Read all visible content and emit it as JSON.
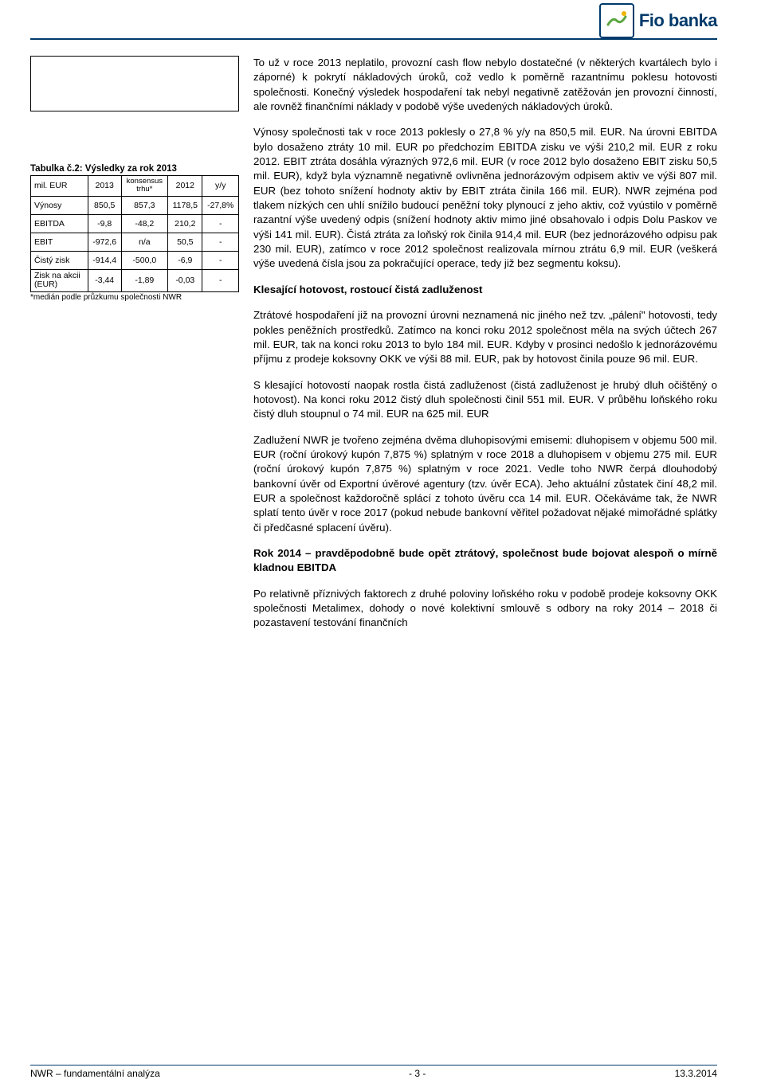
{
  "brand": {
    "name": "Fio banka",
    "logo_color": "#003a6b"
  },
  "table": {
    "caption": "Tabulka č.2: Výsledky za rok 2013",
    "columns": [
      "mil. EUR",
      "2013",
      "konsensus trhu*",
      "2012",
      "y/y"
    ],
    "rows": [
      [
        "Výnosy",
        "850,5",
        "857,3",
        "1178,5",
        "-27,8%"
      ],
      [
        "EBITDA",
        "-9,8",
        "-48,2",
        "210,2",
        "-"
      ],
      [
        "EBIT",
        "-972,6",
        "n/a",
        "50,5",
        "-"
      ],
      [
        "Čistý zisk",
        "-914,4",
        "-500,0",
        "-6,9",
        "-"
      ],
      [
        "Zisk na akcii (EUR)",
        "-3,44",
        "-1,89",
        "-0,03",
        "-"
      ]
    ],
    "note": "*medián podle průzkumu společnosti NWR"
  },
  "body": {
    "p1": "To už v roce 2013 neplatilo, provozní cash flow nebylo dostatečné (v některých kvartálech bylo i záporné) k pokrytí nákladových úroků, což vedlo k poměrně razantnímu poklesu hotovosti společnosti. Konečný výsledek hospodaření tak nebyl negativně zatěžován jen provozní činností, ale rovněž finančními náklady v podobě výše uvedených nákladových úroků.",
    "p2": "Výnosy společnosti tak v roce 2013 poklesly o 27,8 % y/y na 850,5 mil. EUR. Na úrovni EBITDA bylo dosaženo ztráty 10 mil. EUR po předchozím EBITDA zisku ve výši 210,2 mil. EUR z roku 2012. EBIT ztráta dosáhla výrazných 972,6 mil. EUR (v roce 2012 bylo dosaženo EBIT zisku 50,5 mil. EUR), když byla významně negativně ovlivněna jednorázovým odpisem aktiv ve výši 807 mil. EUR (bez tohoto snížení hodnoty aktiv by EBIT ztráta činila 166 mil. EUR). NWR zejména pod tlakem nízkých cen uhlí snížilo budoucí peněžní toky plynoucí z jeho aktiv, což vyústilo v poměrně razantní výše uvedený odpis (snížení hodnoty aktiv mimo jiné obsahovalo i odpis Dolu Paskov ve výši 141 mil. EUR). Čistá ztráta za loňský rok činila 914,4 mil. EUR (bez jednorázového odpisu pak 230 mil. EUR), zatímco v roce 2012 společnost realizovala mírnou ztrátu 6,9 mil. EUR (veškerá výše uvedená čísla jsou za pokračující operace, tedy již bez segmentu koksu).",
    "h2a": "Klesající hotovost, rostoucí čistá zadluženost",
    "p3": "Ztrátové hospodaření již na provozní úrovni neznamená nic jiného než tzv. „pálení\" hotovosti, tedy pokles peněžních prostředků. Zatímco na konci roku 2012 společnost měla na svých účtech 267 mil. EUR, tak na konci roku 2013 to bylo 184 mil. EUR. Kdyby v prosinci nedošlo k jednorázovému příjmu z prodeje koksovny OKK ve výši 88 mil. EUR, pak by hotovost činila pouze 96 mil. EUR.",
    "p4": "S klesající hotovostí naopak rostla čistá zadluženost (čistá zadluženost je hrubý dluh očištěný o hotovost). Na konci roku 2012 čistý dluh společnosti činil 551 mil. EUR. V průběhu loňského roku čistý dluh stoupnul o 74 mil. EUR na 625 mil. EUR",
    "p5": "Zadlužení NWR je tvořeno zejména dvěma dluhopisovými emisemi: dluhopisem v objemu 500 mil. EUR (roční úrokový kupón 7,875 %) splatným v roce 2018 a dluhopisem v objemu 275 mil. EUR (roční úrokový kupón 7,875 %) splatným v roce 2021. Vedle toho NWR čerpá dlouhodobý bankovní úvěr od Exportní úvěrové agentury (tzv. úvěr ECA). Jeho aktuální zůstatek činí 48,2 mil. EUR a společnost každoročně splácí z tohoto úvěru cca 14 mil. EUR. Očekáváme tak, že NWR splatí tento úvěr v roce 2017 (pokud nebude bankovní věřitel požadovat nějaké mimořádné splátky či předčasné splacení úvěru).",
    "h2b": "Rok 2014 – pravděpodobně bude opět ztrátový, společnost bude bojovat alespoň o mírně kladnou EBITDA",
    "p6": "Po relativně příznivých faktorech z druhé poloviny loňského roku v podobě prodeje koksovny OKK společnosti Metalimex, dohody o nové kolektivní smlouvě s odbory na roky 2014 – 2018 či pozastavení testování finančních"
  },
  "footer": {
    "left": "NWR – fundamentální analýza",
    "center": "- 3 -",
    "right": "13.3.2014"
  }
}
